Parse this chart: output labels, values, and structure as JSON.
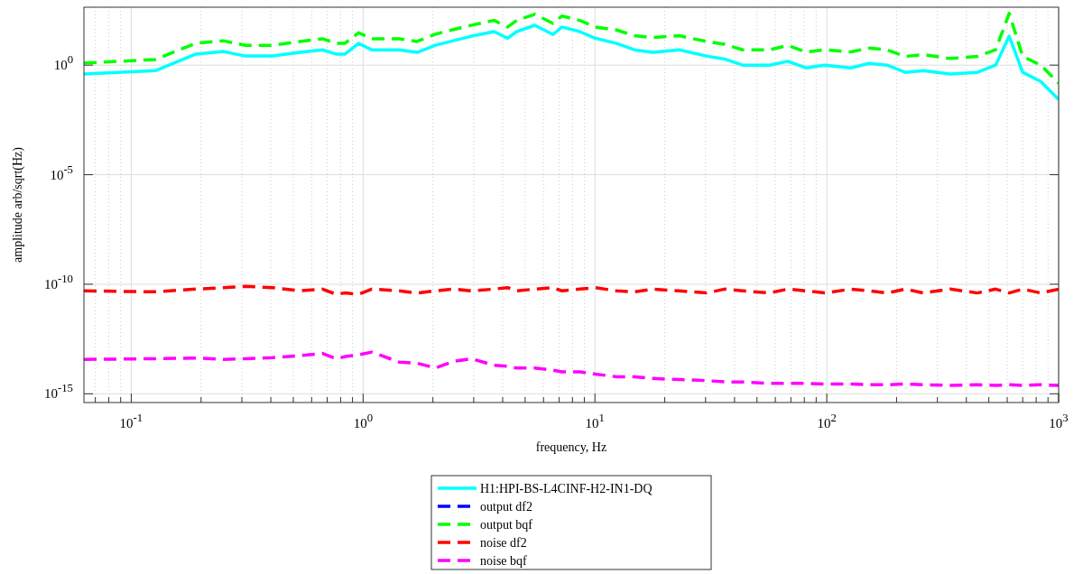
{
  "chart_data": {
    "type": "line",
    "xlabel": "frequency, Hz",
    "ylabel": "amplitude arb/sqrt(Hz)",
    "log": "xy",
    "grid": true,
    "legend": "bottom",
    "xlim": [
      0.0625,
      1000
    ],
    "ylim": [
      4e-16,
      440
    ],
    "xticks": [
      {
        "value": 0.1,
        "label": "10$^{-1}$"
      },
      {
        "value": 1,
        "label": "10$^{0}$"
      },
      {
        "value": 10,
        "label": "10$^{1}$"
      },
      {
        "value": 100,
        "label": "10$^{2}$"
      },
      {
        "value": 1000,
        "label": "10$^{3}$"
      }
    ],
    "yticks": [
      {
        "value": 1e-15,
        "label": "10$^{-15}$"
      },
      {
        "value": 1e-10,
        "label": "10$^{-10}$"
      },
      {
        "value": 1e-05,
        "label": "10$^{-5}$"
      },
      {
        "value": 1,
        "label": "10$^{0}$"
      }
    ],
    "x": [
      0.0625,
      0.127,
      0.19,
      0.249,
      0.311,
      0.407,
      0.533,
      0.668,
      0.764,
      0.836,
      0.956,
      1.09,
      1.43,
      1.71,
      2.05,
      2.45,
      2.94,
      3.67,
      4.2,
      4.6,
      5.5,
      6.6,
      7.2,
      8.6,
      10,
      12.4,
      14.8,
      17.7,
      23.1,
      30.3,
      36.2,
      43.4,
      56.7,
      67.9,
      81.2,
      98,
      127,
      152,
      182,
      218,
      261,
      340,
      446,
      535,
      612,
      700,
      837,
      1000
    ],
    "series": [
      {
        "name": "H1:HPI-BS-L4CINF-H2-IN1-DQ",
        "color": "#00ffff",
        "line_style": "solid",
        "values": [
          0.39,
          0.56,
          3.2,
          4.2,
          2.6,
          2.6,
          3.8,
          5,
          3.2,
          3.2,
          9.8,
          5,
          5,
          3.8,
          8.1,
          13,
          21,
          34,
          17,
          34,
          66,
          25,
          55,
          34,
          17,
          9.8,
          5,
          3.8,
          5,
          2.6,
          1.9,
          1,
          1,
          1.5,
          0.75,
          1,
          0.75,
          1.2,
          1,
          0.47,
          0.56,
          0.39,
          0.47,
          1,
          21,
          0.47,
          0.18,
          0.027
        ]
      },
      {
        "name": "output df2",
        "color": "#0000ff",
        "line_style": "dashed",
        "values": [
          null,
          null,
          null,
          null,
          null,
          null,
          null,
          null,
          null,
          null,
          null,
          null,
          null,
          null,
          null,
          null,
          null,
          null,
          null,
          null,
          null,
          null,
          null,
          null,
          null,
          null,
          null,
          null,
          null,
          null,
          null,
          null,
          null,
          null,
          null,
          null,
          null,
          null,
          null,
          null,
          null,
          null,
          null,
          null,
          null,
          null,
          null,
          null
        ]
      },
      {
        "name": "output bqf",
        "color": "#00ff00",
        "line_style": "dashed",
        "values": [
          1.25,
          1.8,
          10,
          13,
          8,
          8,
          12,
          16,
          10,
          10,
          30,
          16,
          16,
          12,
          26,
          42,
          67,
          110,
          55,
          110,
          210,
          80,
          175,
          110,
          55,
          40,
          22,
          18,
          22,
          12,
          9,
          5,
          5,
          8,
          4,
          5,
          4,
          6,
          5,
          2.5,
          3,
          2,
          2.5,
          5,
          230,
          2.5,
          1,
          0.15
        ]
      },
      {
        "name": "noise df2",
        "color": "#ff0000",
        "line_style": "dashed",
        "values": [
          5e-11,
          4.5e-11,
          6e-11,
          7e-11,
          8e-11,
          7e-11,
          5e-11,
          6e-11,
          3.5e-11,
          4e-11,
          3.5e-11,
          6e-11,
          5e-11,
          4e-11,
          5e-11,
          6e-11,
          5e-11,
          6e-11,
          7e-11,
          5e-11,
          6e-11,
          7e-11,
          5e-11,
          6e-11,
          7e-11,
          5e-11,
          4.5e-11,
          6e-11,
          5e-11,
          4e-11,
          6e-11,
          5e-11,
          4e-11,
          6e-11,
          5e-11,
          4e-11,
          6e-11,
          5e-11,
          4e-11,
          6e-11,
          4e-11,
          6e-11,
          4e-11,
          6e-11,
          4e-11,
          6e-11,
          4e-11,
          6e-11
        ]
      },
      {
        "name": "noise bqf",
        "color": "#ff00ff",
        "line_style": "dashed",
        "values": [
          3.7e-14,
          4e-14,
          4.3e-14,
          3.7e-14,
          4e-14,
          4.5e-14,
          5.5e-14,
          7e-14,
          4e-14,
          5e-14,
          6e-14,
          8e-14,
          2.8e-14,
          2.5e-14,
          1.5e-14,
          3e-14,
          4e-14,
          2e-14,
          1.8e-14,
          1.5e-14,
          1.5e-14,
          1.2e-14,
          1e-14,
          1e-14,
          8e-15,
          6e-15,
          6e-15,
          5e-15,
          4.5e-15,
          4e-15,
          3.5e-15,
          3.5e-15,
          3e-15,
          3e-15,
          3e-15,
          2.8e-15,
          2.8e-15,
          2.6e-15,
          2.6e-15,
          2.8e-15,
          2.6e-15,
          2.4e-15,
          2.6e-15,
          2.4e-15,
          2.6e-15,
          2.4e-15,
          2.6e-15,
          2.4e-15
        ]
      }
    ]
  }
}
